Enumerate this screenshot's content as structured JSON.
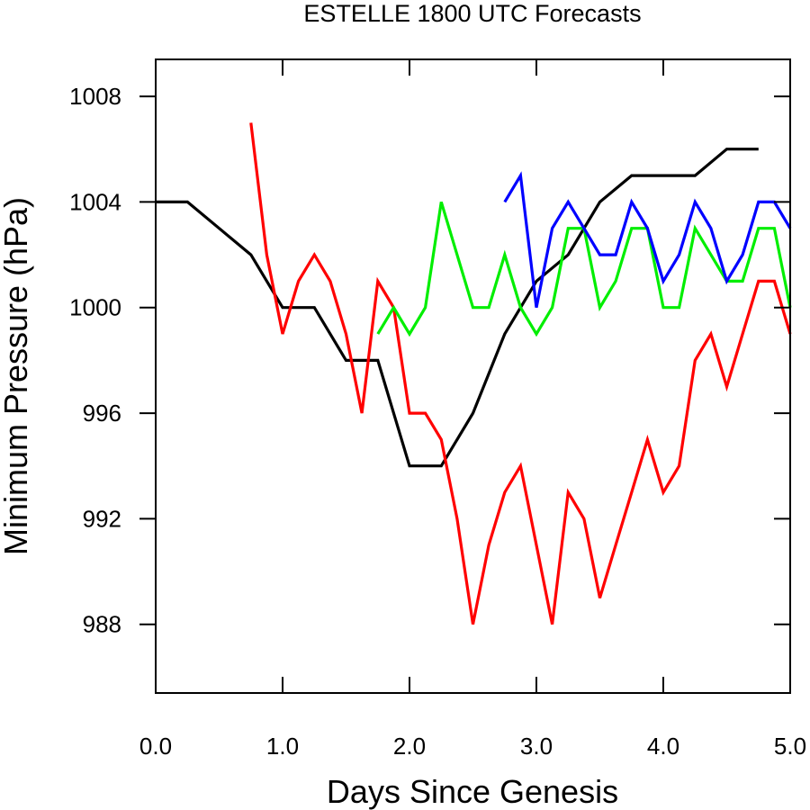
{
  "chart_data": {
    "type": "line",
    "title": "ESTELLE 1800 UTC Forecasts",
    "xlabel": "Days Since Genesis",
    "ylabel": "Minimum Pressure (hPa)",
    "xlim": [
      0,
      5
    ],
    "ylim": [
      985.4,
      1009.4
    ],
    "x_ticks": [
      0,
      1,
      2,
      3,
      4,
      5
    ],
    "x_tick_labels": [
      "0.0",
      "1.0",
      "2.0",
      "3.0",
      "4.0",
      "5.0"
    ],
    "y_ticks": [
      988,
      992,
      996,
      1000,
      1004,
      1008
    ],
    "y_tick_labels": [
      "988",
      "992",
      "996",
      "1000",
      "1004",
      "1008"
    ],
    "grid": false,
    "series": [
      {
        "color": "#000000",
        "points": [
          [
            0,
            1004
          ],
          [
            0.25,
            1004
          ],
          [
            0.5,
            1003
          ],
          [
            0.75,
            1002
          ],
          [
            1.0,
            1000
          ],
          [
            1.25,
            1000
          ],
          [
            1.5,
            998
          ],
          [
            1.75,
            998
          ],
          [
            2.0,
            994
          ],
          [
            2.25,
            994
          ],
          [
            2.5,
            996
          ],
          [
            2.75,
            999
          ],
          [
            3.0,
            1001
          ],
          [
            3.25,
            1002
          ],
          [
            3.5,
            1004
          ],
          [
            3.75,
            1005
          ],
          [
            4.0,
            1005
          ],
          [
            4.25,
            1005
          ],
          [
            4.5,
            1006
          ],
          [
            4.75,
            1006
          ]
        ]
      },
      {
        "color": "#ff0000",
        "points": [
          [
            0.75,
            1007
          ],
          [
            0.875,
            1002
          ],
          [
            1.0,
            999
          ],
          [
            1.125,
            1001
          ],
          [
            1.25,
            1002
          ],
          [
            1.375,
            1001
          ],
          [
            1.5,
            999
          ],
          [
            1.625,
            996
          ],
          [
            1.75,
            1001
          ],
          [
            1.875,
            1000
          ],
          [
            2.0,
            996
          ],
          [
            2.125,
            996
          ],
          [
            2.25,
            995
          ],
          [
            2.375,
            992
          ],
          [
            2.5,
            988
          ],
          [
            2.625,
            991
          ],
          [
            2.75,
            993
          ],
          [
            2.875,
            994
          ],
          [
            3.0,
            991
          ],
          [
            3.125,
            988
          ],
          [
            3.25,
            993
          ],
          [
            3.375,
            992
          ],
          [
            3.5,
            989
          ],
          [
            3.625,
            991
          ],
          [
            3.75,
            993
          ],
          [
            3.875,
            995
          ],
          [
            4.0,
            993
          ],
          [
            4.125,
            994
          ],
          [
            4.25,
            998
          ],
          [
            4.375,
            999
          ],
          [
            4.5,
            997
          ],
          [
            4.625,
            999
          ],
          [
            4.75,
            1001
          ],
          [
            4.875,
            1001
          ],
          [
            5.0,
            999
          ]
        ]
      },
      {
        "color": "#00ee00",
        "points": [
          [
            1.75,
            999
          ],
          [
            1.875,
            1000
          ],
          [
            2.0,
            999
          ],
          [
            2.125,
            1000
          ],
          [
            2.25,
            1004
          ],
          [
            2.375,
            1002
          ],
          [
            2.5,
            1000
          ],
          [
            2.625,
            1000
          ],
          [
            2.75,
            1002
          ],
          [
            2.875,
            1000
          ],
          [
            3.0,
            999
          ],
          [
            3.125,
            1000
          ],
          [
            3.25,
            1003
          ],
          [
            3.375,
            1003
          ],
          [
            3.5,
            1000
          ],
          [
            3.625,
            1001
          ],
          [
            3.75,
            1003
          ],
          [
            3.875,
            1003
          ],
          [
            4.0,
            1000
          ],
          [
            4.125,
            1000
          ],
          [
            4.25,
            1003
          ],
          [
            4.375,
            1002
          ],
          [
            4.5,
            1001
          ],
          [
            4.625,
            1001
          ],
          [
            4.75,
            1003
          ],
          [
            4.875,
            1003
          ],
          [
            5.0,
            1000
          ]
        ]
      },
      {
        "color": "#0000ff",
        "points": [
          [
            2.75,
            1004
          ],
          [
            2.875,
            1005
          ],
          [
            3.0,
            1000
          ],
          [
            3.125,
            1003
          ],
          [
            3.25,
            1004
          ],
          [
            3.375,
            1003
          ],
          [
            3.5,
            1002
          ],
          [
            3.625,
            1002
          ],
          [
            3.75,
            1004
          ],
          [
            3.875,
            1003
          ],
          [
            4.0,
            1001
          ],
          [
            4.125,
            1002
          ],
          [
            4.25,
            1004
          ],
          [
            4.375,
            1003
          ],
          [
            4.5,
            1001
          ],
          [
            4.625,
            1002
          ],
          [
            4.75,
            1004
          ],
          [
            4.875,
            1004
          ],
          [
            5.0,
            1003
          ]
        ]
      }
    ]
  }
}
